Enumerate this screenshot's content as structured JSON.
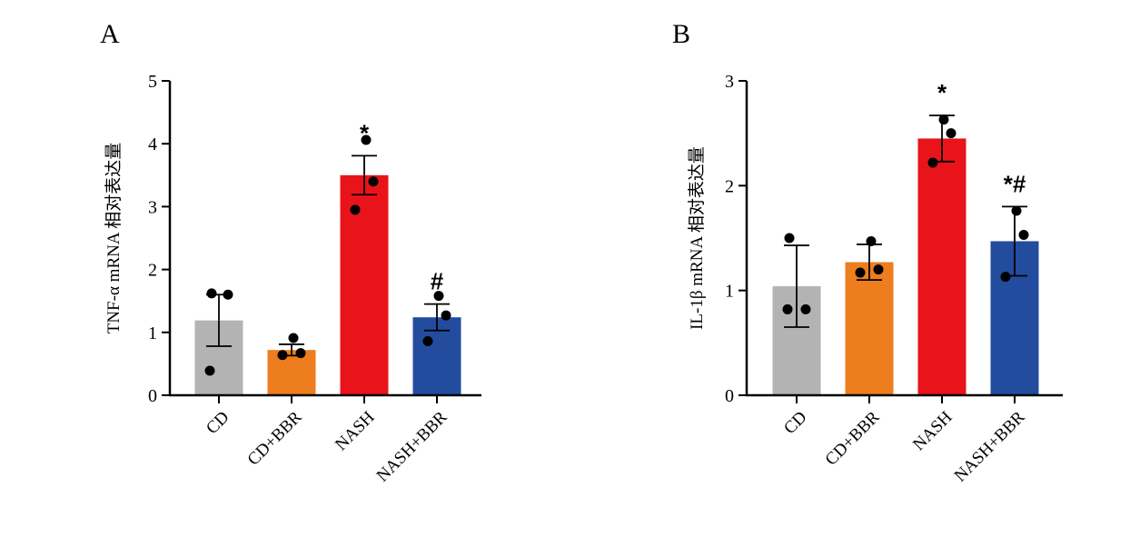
{
  "chart_data": [
    {
      "panel": "A",
      "type": "bar",
      "ylabel": "TNF-α mRNA 相对表达量",
      "xlabel": "",
      "ylim": [
        0,
        5
      ],
      "yticks": [
        0,
        1,
        2,
        3,
        4,
        5
      ],
      "categories": [
        "CD",
        "CD+BBR",
        "NASH",
        "NASH+BBR"
      ],
      "colors": [
        "#b3b3b3",
        "#ed7d1e",
        "#e8141a",
        "#234c9f"
      ],
      "values": [
        1.19,
        0.72,
        3.5,
        1.24
      ],
      "errors": [
        0.41,
        0.09,
        0.31,
        0.21
      ],
      "points": [
        [
          1.62,
          1.6,
          0.39
        ],
        [
          0.91,
          0.67,
          0.64
        ],
        [
          4.06,
          3.4,
          2.95
        ],
        [
          1.58,
          1.27,
          0.86
        ]
      ],
      "annotations": [
        "",
        "",
        "*",
        "#"
      ]
    },
    {
      "panel": "B",
      "type": "bar",
      "ylabel": "IL-1β mRNA 相对表达量",
      "xlabel": "",
      "ylim": [
        0,
        3
      ],
      "yticks": [
        0,
        1,
        2,
        3
      ],
      "categories": [
        "CD",
        "CD+BBR",
        "NASH",
        "NASH+BBR"
      ],
      "colors": [
        "#b3b3b3",
        "#ed7d1e",
        "#e8141a",
        "#234c9f"
      ],
      "values": [
        1.04,
        1.27,
        2.45,
        1.47
      ],
      "errors": [
        0.39,
        0.17,
        0.22,
        0.33
      ],
      "points": [
        [
          1.5,
          0.82,
          0.82
        ],
        [
          1.47,
          1.17,
          1.2
        ],
        [
          2.63,
          2.5,
          2.22
        ],
        [
          1.76,
          1.53,
          1.13
        ]
      ],
      "annotations": [
        "",
        "",
        "*",
        "*#"
      ]
    }
  ]
}
